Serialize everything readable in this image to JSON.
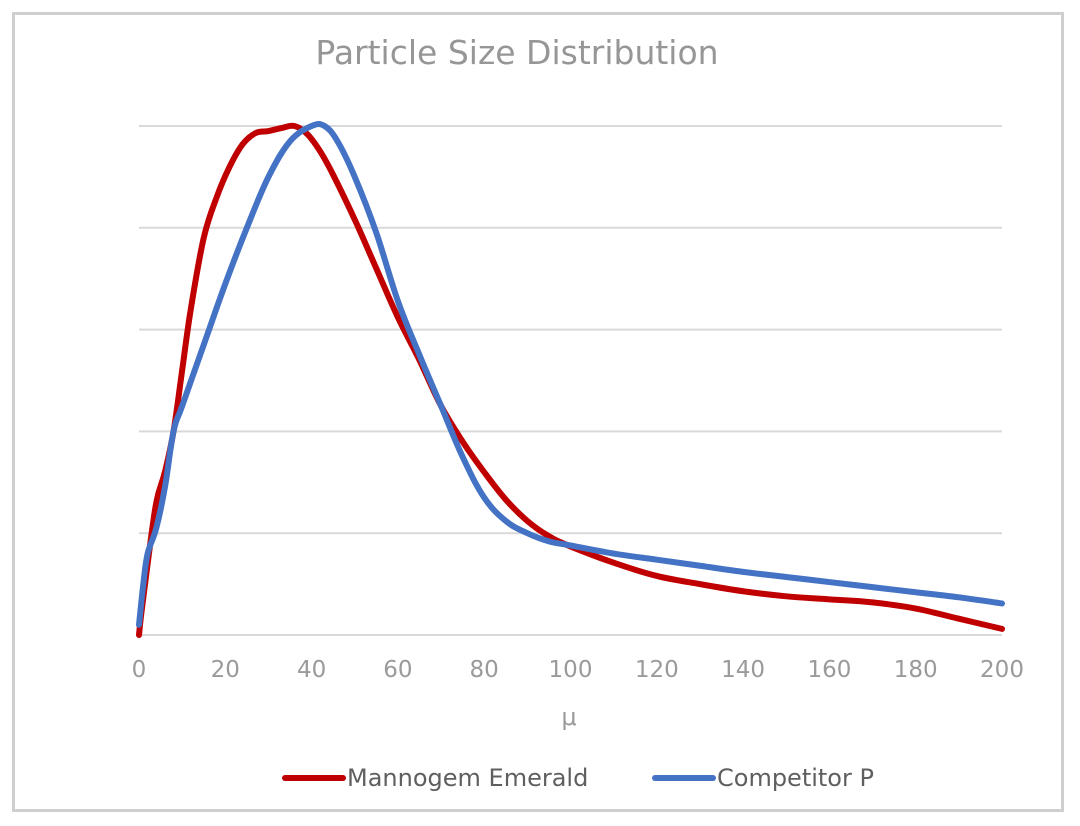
{
  "chart_data": {
    "type": "line",
    "title": "Particle Size Distribution",
    "xlabel": "μ",
    "ylabel": "",
    "x_ticks": [
      "0",
      "20",
      "40",
      "60",
      "80",
      "100",
      "120",
      "140",
      "160",
      "180",
      "200"
    ],
    "xlim": [
      0,
      200
    ],
    "ylim": [
      0,
      5
    ],
    "gridlines_y": [
      1,
      2,
      3,
      4,
      5
    ],
    "grid": true,
    "legend_position": "bottom",
    "series": [
      {
        "name": "Mannogem Emerald",
        "color": "#c00000",
        "points": [
          [
            0,
            0.0
          ],
          [
            0.5,
            0.2
          ],
          [
            2,
            0.7
          ],
          [
            4,
            1.3
          ],
          [
            6,
            1.6
          ],
          [
            8,
            2.0
          ],
          [
            10,
            2.6
          ],
          [
            12,
            3.2
          ],
          [
            15,
            3.9
          ],
          [
            18,
            4.3
          ],
          [
            21,
            4.6
          ],
          [
            24,
            4.82
          ],
          [
            27,
            4.93
          ],
          [
            30,
            4.95
          ],
          [
            33,
            4.98
          ],
          [
            36,
            5.0
          ],
          [
            39,
            4.92
          ],
          [
            42,
            4.75
          ],
          [
            45,
            4.52
          ],
          [
            50,
            4.08
          ],
          [
            55,
            3.6
          ],
          [
            60,
            3.12
          ],
          [
            65,
            2.7
          ],
          [
            70,
            2.25
          ],
          [
            75,
            1.9
          ],
          [
            80,
            1.6
          ],
          [
            85,
            1.33
          ],
          [
            90,
            1.12
          ],
          [
            95,
            0.97
          ],
          [
            100,
            0.87
          ],
          [
            110,
            0.71
          ],
          [
            120,
            0.58
          ],
          [
            130,
            0.5
          ],
          [
            140,
            0.43
          ],
          [
            150,
            0.38
          ],
          [
            160,
            0.35
          ],
          [
            170,
            0.32
          ],
          [
            180,
            0.26
          ],
          [
            190,
            0.16
          ],
          [
            200,
            0.06
          ]
        ]
      },
      {
        "name": "Competitor P",
        "color": "#4472c4",
        "points": [
          [
            0,
            0.1
          ],
          [
            1,
            0.5
          ],
          [
            2,
            0.8
          ],
          [
            4,
            1.05
          ],
          [
            6,
            1.45
          ],
          [
            8,
            2.0
          ],
          [
            10,
            2.25
          ],
          [
            15,
            2.85
          ],
          [
            20,
            3.45
          ],
          [
            25,
            4.0
          ],
          [
            30,
            4.5
          ],
          [
            35,
            4.85
          ],
          [
            40,
            5.0
          ],
          [
            43,
            5.0
          ],
          [
            46,
            4.85
          ],
          [
            50,
            4.5
          ],
          [
            55,
            3.95
          ],
          [
            60,
            3.28
          ],
          [
            65,
            2.75
          ],
          [
            70,
            2.25
          ],
          [
            75,
            1.75
          ],
          [
            80,
            1.35
          ],
          [
            85,
            1.12
          ],
          [
            90,
            1.0
          ],
          [
            95,
            0.92
          ],
          [
            100,
            0.88
          ],
          [
            110,
            0.8
          ],
          [
            120,
            0.74
          ],
          [
            130,
            0.68
          ],
          [
            140,
            0.62
          ],
          [
            150,
            0.57
          ],
          [
            160,
            0.52
          ],
          [
            170,
            0.47
          ],
          [
            180,
            0.42
          ],
          [
            190,
            0.37
          ],
          [
            200,
            0.31
          ]
        ]
      }
    ]
  },
  "colors": {
    "frame_border": "#cfcfcf",
    "grid": "#d9d9d9",
    "text_muted": "#9a9a9a"
  }
}
